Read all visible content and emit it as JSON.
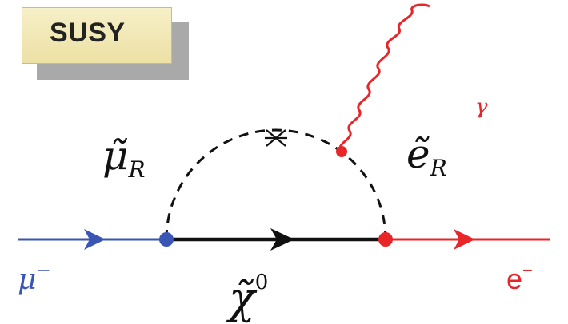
{
  "badge": {
    "label": "SUSY"
  },
  "particles": {
    "muon_in": {
      "symbol": "μ",
      "charge": "−"
    },
    "electron_out": {
      "symbol": "e",
      "charge": "−"
    },
    "photon": {
      "symbol": "γ"
    },
    "smuon": {
      "symbol": "μ̃",
      "subscript": "R"
    },
    "selectron": {
      "symbol": "ẽ",
      "subscript": "R"
    },
    "neutralino": {
      "symbol": "χ̃",
      "superscript": "0"
    }
  },
  "colors": {
    "muon": "#3a55b4",
    "electron": "#e8262a",
    "propagator": "#111111",
    "label": "#111111",
    "badge_bg": "#f3ebbd",
    "badge_shadow": "#a9a9a9"
  }
}
